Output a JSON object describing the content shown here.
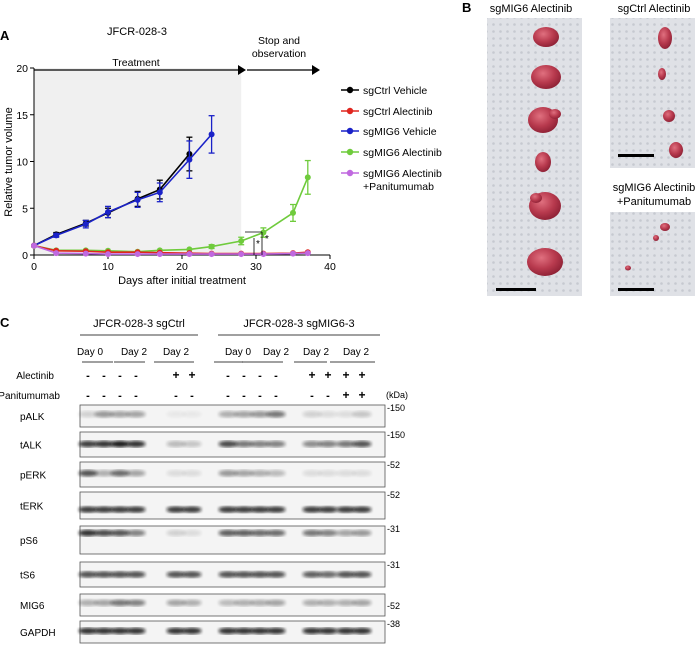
{
  "panel_a": {
    "letter": "A",
    "title": "JFCR-028-3",
    "treatment_label": "Treatment",
    "stop_label_1": "Stop and",
    "stop_label_2": "observation",
    "star": "*",
    "colors": {
      "sgCtrl Vehicle": "#000000",
      "sgCtrl Alectinib": "#e0261f",
      "sgMIG6 Vehicle": "#1a22c8",
      "sgMIG6 Alectinib": "#6fcb3c",
      "sgMIG6 Alectinib +Panitumumab": "#c069df"
    }
  },
  "chart_data": {
    "type": "line",
    "xlabel": "Days after initial treatment",
    "ylabel": "Relative tumor volume",
    "xlim": [
      0,
      40
    ],
    "ylim": [
      0,
      20
    ],
    "xticks": [
      0,
      10,
      20,
      30,
      40
    ],
    "yticks": [
      0,
      5,
      10,
      15,
      20
    ],
    "treatment_end_day": 28,
    "series": [
      {
        "name": "sgCtrl Vehicle",
        "x": [
          0,
          3,
          7,
          10,
          14,
          17,
          21
        ],
        "y": [
          1,
          2.2,
          3.4,
          4.5,
          6.0,
          7.0,
          10.8
        ],
        "err": [
          0,
          0.2,
          0.3,
          0.5,
          0.8,
          1.0,
          1.8
        ]
      },
      {
        "name": "sgCtrl Alectinib",
        "x": [
          0,
          3,
          7,
          10,
          14,
          17,
          21,
          24,
          28,
          31,
          35,
          37
        ],
        "y": [
          1,
          0.45,
          0.4,
          0.3,
          0.3,
          0.25,
          0.2,
          0.15,
          0.15,
          0.15,
          0.2,
          0.3
        ],
        "err": [
          0,
          0.1,
          0.1,
          0.05,
          0.05,
          0.05,
          0.05,
          0.05,
          0.05,
          0.05,
          0.05,
          0.1
        ]
      },
      {
        "name": "sgMIG6 Vehicle",
        "x": [
          0,
          3,
          7,
          10,
          14,
          17,
          21,
          24
        ],
        "y": [
          1,
          2.1,
          3.3,
          4.6,
          5.9,
          6.7,
          10.2,
          12.9
        ],
        "err": [
          0,
          0.2,
          0.4,
          0.6,
          0.8,
          1.0,
          2.0,
          2.0
        ]
      },
      {
        "name": "sgMIG6 Alectinib",
        "x": [
          0,
          3,
          7,
          10,
          14,
          17,
          21,
          24,
          28,
          31,
          35,
          37
        ],
        "y": [
          1,
          0.5,
          0.5,
          0.45,
          0.35,
          0.5,
          0.6,
          0.9,
          1.5,
          2.4,
          4.5,
          8.3
        ],
        "err": [
          0,
          0.1,
          0.1,
          0.1,
          0.1,
          0.1,
          0.15,
          0.2,
          0.4,
          0.5,
          0.9,
          1.8
        ]
      },
      {
        "name": "sgMIG6 Alectinib +Panitumumab",
        "x": [
          0,
          3,
          7,
          10,
          14,
          17,
          21,
          24,
          28,
          31,
          35,
          37
        ],
        "y": [
          1,
          0.2,
          0.15,
          0.1,
          0.1,
          0.1,
          0.1,
          0.1,
          0.1,
          0.1,
          0.15,
          0.2
        ],
        "err": [
          0,
          0.05,
          0.05,
          0.05,
          0.05,
          0.05,
          0.05,
          0.05,
          0.05,
          0.05,
          0.05,
          0.05
        ]
      }
    ],
    "legend": [
      {
        "label": "sgCtrl Vehicle",
        "color": "#000000"
      },
      {
        "label": "sgCtrl Alectinib",
        "color": "#e0261f"
      },
      {
        "label": "sgMIG6 Vehicle",
        "color": "#1a22c8"
      },
      {
        "label": "sgMIG6 Alectinib",
        "color": "#6fcb3c"
      },
      {
        "label": "sgMIG6 Alectinib",
        "label2": "+Panitumumab",
        "color": "#c069df"
      }
    ]
  },
  "panel_b": {
    "letter": "B",
    "left_title": "sgMIG6 Alectinib",
    "right_title": "sgCtrl Alectinib",
    "bottom_title_1": "sgMIG6 Alectinib",
    "bottom_title_2": "+Panitumumab"
  },
  "panel_c": {
    "letter": "C",
    "group1": "JFCR-028-3 sgCtrl",
    "group2": "JFCR-028-3 sgMIG6-3",
    "day_labels_1": [
      "Day 0",
      "Day 2",
      "Day 2"
    ],
    "day_labels_2": [
      "Day 0",
      "Day 2",
      "Day 2",
      "Day 2"
    ],
    "alectinib_label": "Alectinib",
    "panitumumab_label": "Panitumumab",
    "kda_label": "(kDa)",
    "alectinib": [
      "-",
      "-",
      "-",
      "-",
      "+",
      "+",
      "-",
      "-",
      "-",
      "-",
      "+",
      "+",
      "+",
      "+"
    ],
    "panitumumab": [
      "-",
      "-",
      "-",
      "-",
      "-",
      "-",
      "-",
      "-",
      "-",
      "-",
      "-",
      "-",
      "+",
      "+"
    ],
    "blots": [
      {
        "label": "pALK",
        "kda": "-150"
      },
      {
        "label": "tALK",
        "kda": "-150"
      },
      {
        "label": "pERK",
        "kda": "-52"
      },
      {
        "label": "tERK",
        "kda": "-52"
      },
      {
        "label": "pS6",
        "kda": "-31"
      },
      {
        "label": "tS6",
        "kda": "-31"
      },
      {
        "label": "MIG6",
        "kda": "-52"
      },
      {
        "label": "GAPDH",
        "kda": "-38"
      }
    ]
  }
}
